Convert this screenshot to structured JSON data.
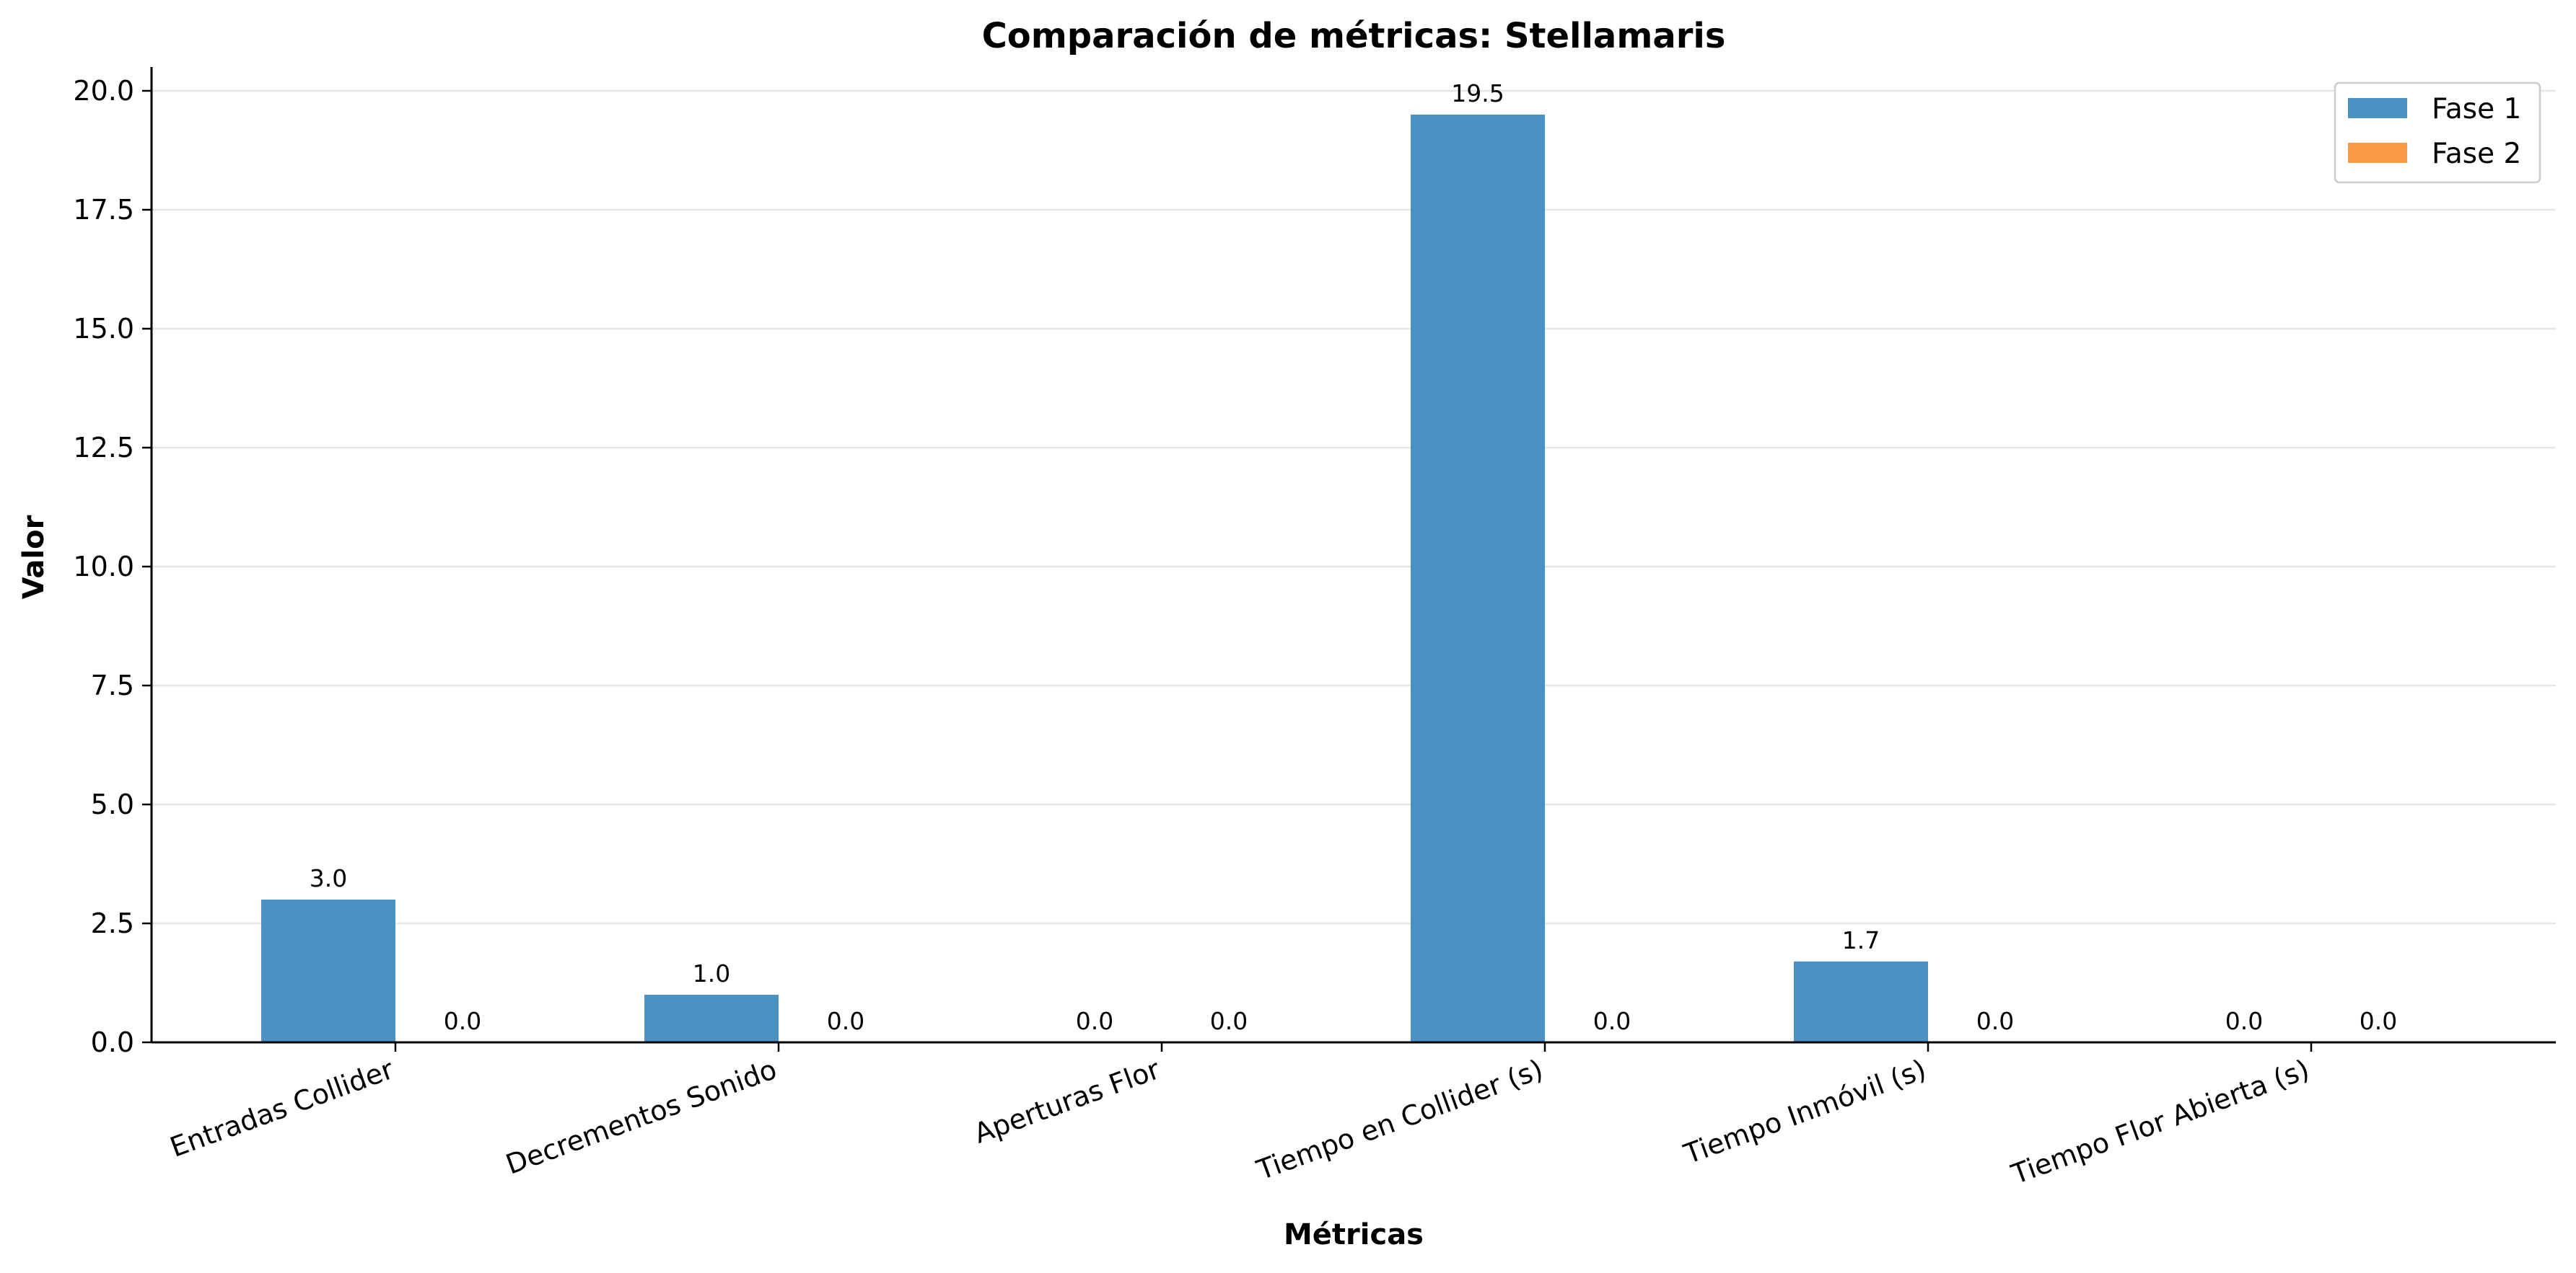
{
  "chart_data": {
    "type": "bar",
    "title": "Comparación de métricas: Stellamaris",
    "xlabel": "Métricas",
    "ylabel": "Valor",
    "categories": [
      "Entradas Collider",
      "Decrementos Sonido",
      "Aperturas Flor",
      "Tiempo en Collider (s)",
      "Tiempo Inmóvil (s)",
      "Tiempo Flor Abierta (s)"
    ],
    "series": [
      {
        "name": "Fase 1",
        "color": "#4a92c4",
        "values": [
          3.0,
          1.0,
          0.0,
          19.5,
          1.7,
          0.0
        ]
      },
      {
        "name": "Fase 2",
        "color": "#fb9a45",
        "values": [
          0.0,
          0.0,
          0.0,
          0.0,
          0.0,
          0.0
        ]
      }
    ],
    "data_labels": [
      [
        "3.0",
        "1.0",
        "0.0",
        "19.5",
        "1.7",
        "0.0"
      ],
      [
        "0.0",
        "0.0",
        "0.0",
        "0.0",
        "0.0",
        "0.0"
      ]
    ],
    "yticks": [
      "0.0",
      "2.5",
      "5.0",
      "7.5",
      "10.0",
      "12.5",
      "15.0",
      "17.5",
      "20.0"
    ],
    "ylim": [
      0,
      20.5
    ],
    "grid": "horizontal",
    "legend_position": "top-right"
  }
}
